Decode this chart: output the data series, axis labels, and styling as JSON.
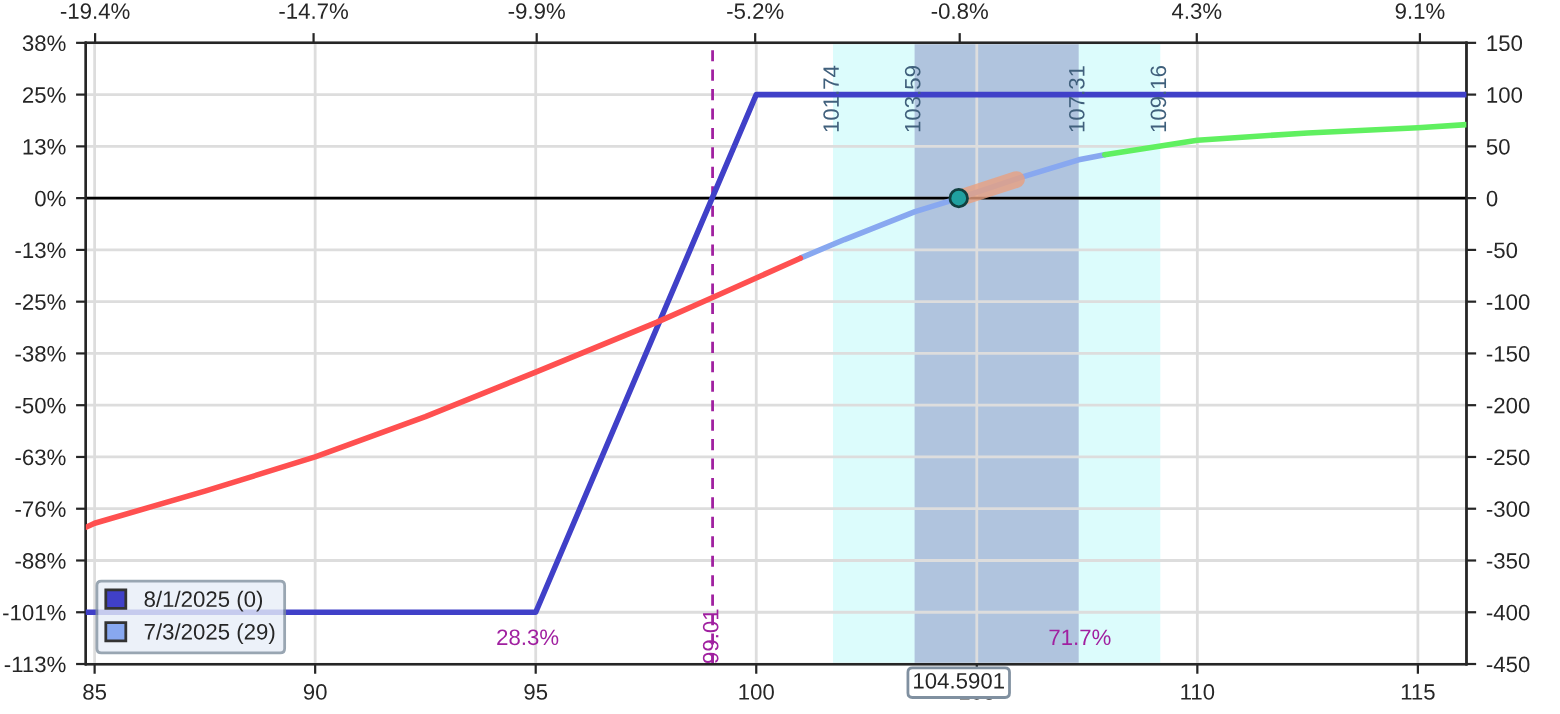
{
  "chart_data": {
    "type": "line",
    "xlim": [
      84.8,
      116.1
    ],
    "xticks": [
      85,
      90,
      95,
      100,
      105,
      110,
      115
    ],
    "x2lim": [
      -19.6,
      10.1
    ],
    "x2ticks": [
      {
        "value": -19.4,
        "label": "-19.4%"
      },
      {
        "value": -14.7,
        "label": "-14.7%"
      },
      {
        "value": -9.9,
        "label": "-9.9%"
      },
      {
        "value": -5.2,
        "label": "-5.2%"
      },
      {
        "value": -0.8,
        "label": "-0.8%"
      },
      {
        "value": 4.3,
        "label": "4.3%"
      },
      {
        "value": 9.1,
        "label": "9.1%"
      }
    ],
    "ylim": [
      -113.4,
      37.8
    ],
    "yticks": [
      {
        "value": 37.8,
        "label": "38%"
      },
      {
        "value": 25.2,
        "label": "25%"
      },
      {
        "value": 12.6,
        "label": "13%"
      },
      {
        "value": 0,
        "label": "0%"
      },
      {
        "value": -12.6,
        "label": "-13%"
      },
      {
        "value": -25.2,
        "label": "-25%"
      },
      {
        "value": -37.8,
        "label": "-38%"
      },
      {
        "value": -50.4,
        "label": "-50%"
      },
      {
        "value": -63.0,
        "label": "-63%"
      },
      {
        "value": -75.6,
        "label": "-76%"
      },
      {
        "value": -88.2,
        "label": "-88%"
      },
      {
        "value": -100.8,
        "label": "-101%"
      },
      {
        "value": -113.4,
        "label": "-113%"
      }
    ],
    "y2lim": [
      -450,
      150
    ],
    "y2ticks": [
      150,
      100,
      50,
      0,
      -50,
      -100,
      -150,
      -200,
      -250,
      -300,
      -350,
      -400,
      -450
    ],
    "grid": true,
    "legend": "bottom left",
    "series": [
      {
        "name": "8/1/2025 (0)",
        "color": "#4040c8",
        "axis": "y2",
        "x": [
          84.8,
          95,
          100,
          116.1
        ],
        "values": [
          -400,
          -400,
          100,
          100
        ]
      },
      {
        "name": "7/3/2025 (29)",
        "color": "#88a8f0",
        "axis": "y2",
        "x": [
          101,
          102,
          103.6,
          104.6,
          106,
          107.31,
          107.9
        ],
        "values": [
          -58,
          -40,
          -13,
          0,
          20,
          37,
          42
        ]
      },
      {
        "color": "#ff5050",
        "axis": "y2",
        "x": [
          84.8,
          85,
          87.5,
          90,
          92.5,
          95,
          97.74,
          99.01,
          101
        ],
        "values": [
          -318,
          -314,
          -283,
          -250,
          -211,
          -168,
          -120,
          -96,
          -58
        ]
      },
      {
        "color": "#60f060",
        "axis": "y2",
        "x": [
          107.9,
          110,
          112.5,
          115,
          116.1
        ],
        "values": [
          42,
          56,
          63,
          68,
          71
        ]
      },
      {
        "color": "#e8a080",
        "axis": "y2",
        "x": [
          104.6,
          105.9
        ],
        "values": [
          0,
          18
        ]
      },
      {
        "type": "scatter",
        "color": "#20a0a0",
        "axis": "y2",
        "x": [
          104.5901
        ],
        "values": [
          0
        ]
      }
    ],
    "bands": [
      {
        "axis": "x",
        "from": 101.74,
        "to": 109.16,
        "color": "#dcfcfc"
      },
      {
        "axis": "x",
        "from": 103.59,
        "to": 107.31,
        "color": "#b0c4de"
      }
    ],
    "ref_lines": [
      {
        "axis": "x",
        "value": 99.01,
        "label": "99.01",
        "color": "#a020a0",
        "line_style": "dashed"
      },
      {
        "axis": "y2",
        "value": 0,
        "color": "#000000"
      }
    ],
    "annotations": [
      "28.3%",
      "71.7%",
      "104.5901",
      "101.74",
      "103.59",
      "107.31",
      "109.16"
    ]
  }
}
